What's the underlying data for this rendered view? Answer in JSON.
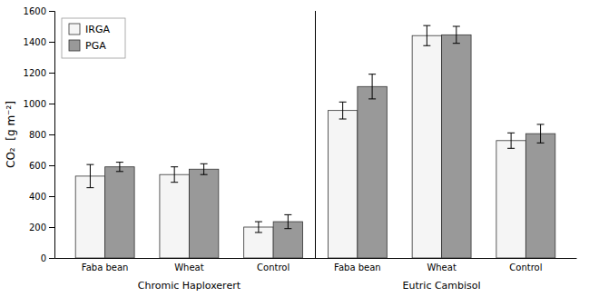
{
  "chart_data": {
    "type": "bar",
    "categories": [
      "Faba bean",
      "Wheat",
      "Control",
      "Faba bean",
      "Wheat",
      "Control"
    ],
    "series": [
      {
        "name": "IRGA",
        "color": "#f5f5f5",
        "values": [
          530,
          540,
          200,
          955,
          1440,
          760
        ],
        "errors": [
          75,
          50,
          35,
          55,
          65,
          50
        ]
      },
      {
        "name": "PGA",
        "color": "#999999",
        "values": [
          590,
          575,
          235,
          1110,
          1445,
          805
        ],
        "errors": [
          30,
          35,
          45,
          80,
          55,
          60
        ]
      }
    ],
    "ylabel": "CO₂  [g m⁻²]",
    "annotations": [
      "Chromic Haploxerert",
      "Eutric Cambisol"
    ],
    "ylim": [
      0,
      1600
    ],
    "yticks": [
      0,
      200,
      400,
      600,
      800,
      1000,
      1200,
      1400,
      1600
    ],
    "legend": "upper left",
    "grid": false
  }
}
